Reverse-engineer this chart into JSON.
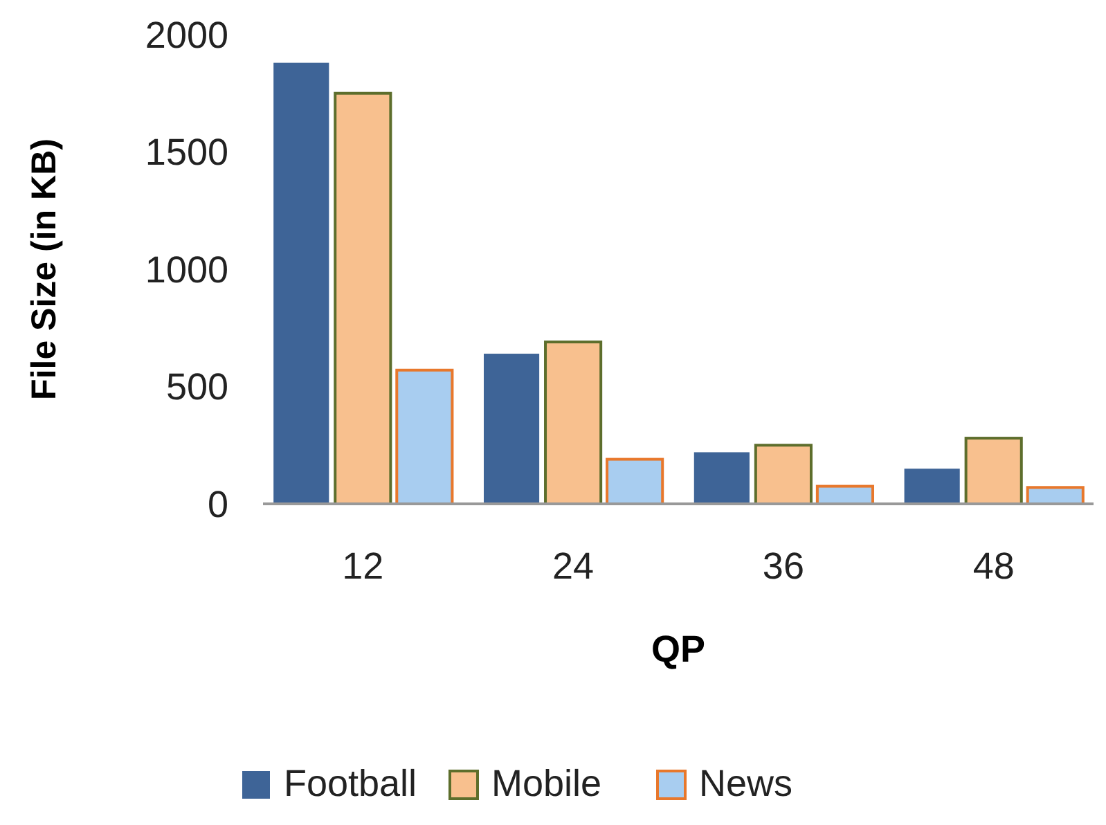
{
  "chart_data": {
    "type": "bar",
    "xlabel": "QP",
    "ylabel": "File Size (in KB)",
    "categories": [
      "12",
      "24",
      "36",
      "48"
    ],
    "series": [
      {
        "name": "Football",
        "color": "#3e6497",
        "values": [
          1880,
          640,
          220,
          150
        ]
      },
      {
        "name": "Mobile",
        "color": "#f8c08e",
        "values": [
          1750,
          690,
          250,
          280
        ]
      },
      {
        "name": "News",
        "color": "#a8cdf0",
        "values": [
          570,
          190,
          75,
          70
        ]
      }
    ],
    "ylim": [
      0,
      2000
    ],
    "yticks": [
      0,
      500,
      1000,
      1500,
      2000
    ],
    "grid": false,
    "legend": "bottom"
  }
}
